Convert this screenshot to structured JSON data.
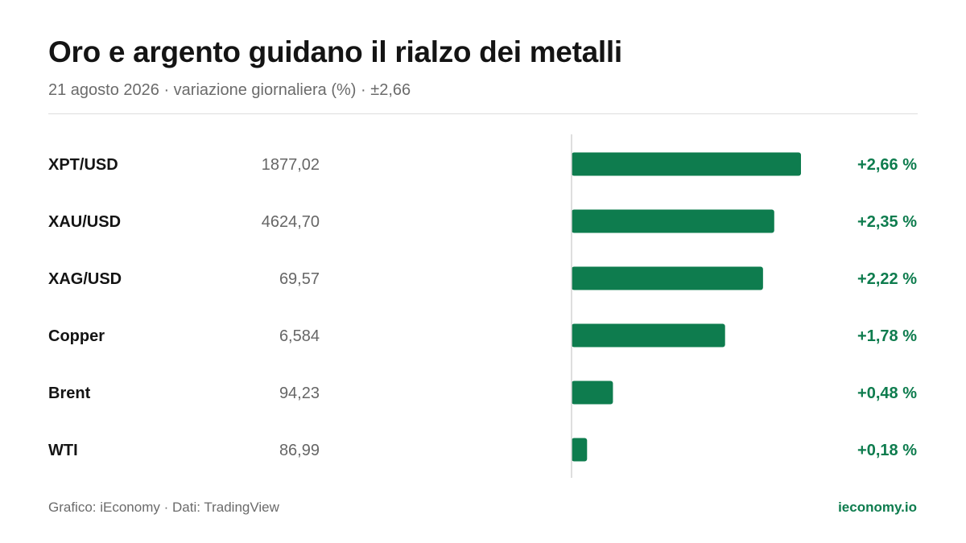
{
  "header": {
    "title": "Oro e argento guidano il rialzo dei metalli",
    "subtitle": "21 agosto 2026 · variazione giornaliera (%) · ±2,66"
  },
  "footer": {
    "source": "Grafico: iEconomy · Dati: TradingView",
    "brand": "ieconomy.io"
  },
  "colors": {
    "positive_bar": "#0e7c4e",
    "positive_text": "#0e7c4e",
    "axis": "#d4d4d4",
    "label": "#141414",
    "price": "#666666"
  },
  "chart_data": {
    "type": "bar",
    "orientation": "horizontal",
    "title": "Oro e argento guidano il rialzo dei metalli",
    "xlim": [
      -2.66,
      2.66
    ],
    "categories": [
      "XPT/USD",
      "XAU/USD",
      "XAG/USD",
      "Copper",
      "Brent",
      "WTI"
    ],
    "prices": [
      "1877,02",
      "4624,70",
      "69,57",
      "6,584",
      "94,23",
      "86,99"
    ],
    "values": [
      2.66,
      2.35,
      2.22,
      1.78,
      0.48,
      0.18
    ],
    "value_labels": [
      "+2,66 %",
      "+2,35 %",
      "+2,22 %",
      "+1,78 %",
      "+0,48 %",
      "+0,18 %"
    ],
    "grid": false,
    "legend": "none"
  }
}
